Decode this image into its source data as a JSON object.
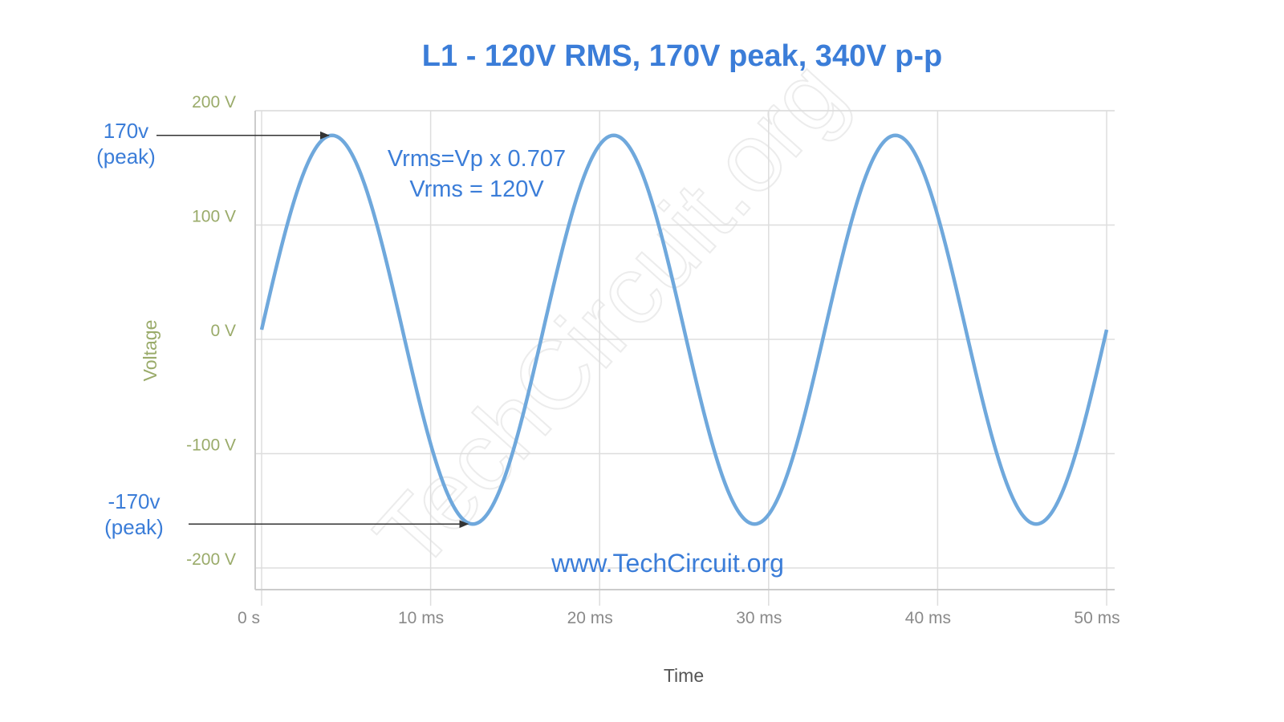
{
  "colors": {
    "accent": "#3b7dd8",
    "series": "#6fa8dc",
    "yaxis_text": "#9aab6a",
    "xaxis_text": "#8a8a8a",
    "grid": "#dddddd",
    "arrow": "#333333"
  },
  "chart_data": {
    "type": "line",
    "title": "L1  - 120V RMS, 170V peak, 340V p-p",
    "xlabel": "Time",
    "ylabel": "Voltage",
    "xlim": [
      0,
      50
    ],
    "ylim": [
      -220,
      200
    ],
    "grid": true,
    "x_ticks": [
      {
        "value": 0,
        "label": "0 s"
      },
      {
        "value": 10,
        "label": "10 ms"
      },
      {
        "value": 20,
        "label": "20 ms"
      },
      {
        "value": 30,
        "label": "30 ms"
      },
      {
        "value": 40,
        "label": "40 ms"
      },
      {
        "value": 50,
        "label": "50 ms"
      }
    ],
    "y_ticks": [
      {
        "value": 200,
        "label": "200 V"
      },
      {
        "value": 100,
        "label": "100 V"
      },
      {
        "value": 0,
        "label": "0 V"
      },
      {
        "value": -100,
        "label": "-100 V"
      },
      {
        "value": -200,
        "label": "-200 V"
      }
    ],
    "series": [
      {
        "function": "sine",
        "amplitude": 170,
        "frequency_hz": 60,
        "x_unit": "ms",
        "x_range": [
          0,
          50
        ]
      }
    ],
    "annotations": {
      "peak_pos": {
        "line1": "170v",
        "line2": "(peak)",
        "x": 4.17,
        "y": 170
      },
      "peak_neg": {
        "line1": "-170v",
        "line2": "(peak)",
        "x": 12.5,
        "y": -170
      },
      "formula_line1": "Vrms=Vp x 0.707",
      "formula_line2": "Vrms = 120V",
      "website": "www.TechCircuit.org",
      "watermark": "TechCircuit.org"
    }
  }
}
